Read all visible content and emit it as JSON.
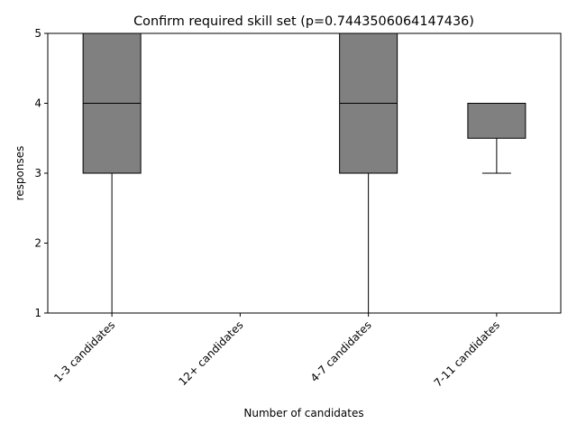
{
  "chart_data": {
    "type": "box",
    "title": "Confirm required skill set (p=0.7443506064147436)",
    "xlabel": "Number of candidates",
    "ylabel": "responses",
    "ylim": [
      1,
      5
    ],
    "yticks": [
      "1",
      "2",
      "3",
      "4",
      "5"
    ],
    "categories": [
      "1-3 candidates",
      "12+ candidates",
      "4-7 candidates",
      "7-11 candidates"
    ],
    "boxes": [
      {
        "category": "1-3 candidates",
        "whisker_low": 1,
        "q1": 3,
        "median": 4,
        "q3": 5,
        "whisker_high": 5
      },
      {
        "category": "12+ candidates",
        "whisker_low": 5,
        "q1": 5,
        "median": 5,
        "q3": 5,
        "whisker_high": 5
      },
      {
        "category": "4-7 candidates",
        "whisker_low": 1,
        "q1": 3,
        "median": 4,
        "q3": 5,
        "whisker_high": 5
      },
      {
        "category": "7-11 candidates",
        "whisker_low": 3,
        "q1": 3.5,
        "median": 4,
        "q3": 4,
        "whisker_high": 4
      }
    ],
    "box_color": "#808080",
    "line_color": "#000000",
    "grid": false,
    "legend": "none"
  }
}
